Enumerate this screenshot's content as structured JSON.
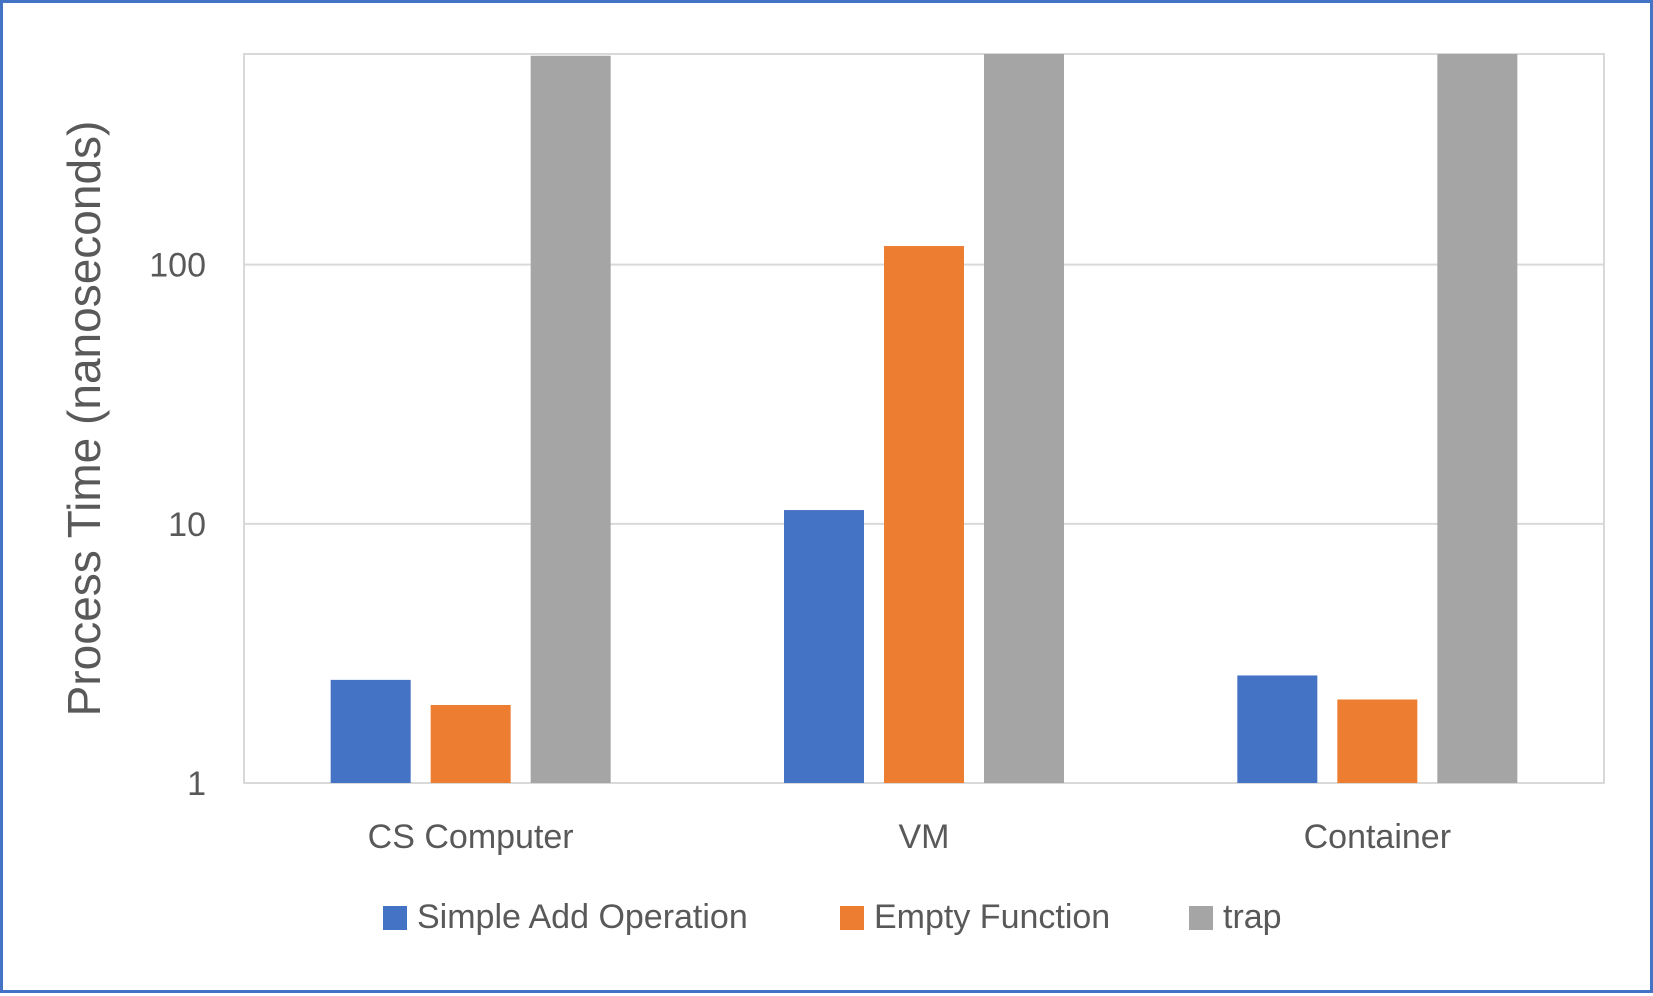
{
  "chart_data": {
    "type": "bar",
    "title": "",
    "xlabel": "",
    "ylabel": "Process Time (nanoseconds)",
    "y_scale": "log",
    "ylim": [
      1,
      650
    ],
    "yticks": [
      {
        "value": 1,
        "label": "1"
      },
      {
        "value": 10,
        "label": "10"
      },
      {
        "value": 100,
        "label": "100"
      }
    ],
    "grid": true,
    "legend_position": "bottom",
    "categories": [
      "CS Computer",
      "VM",
      "Container"
    ],
    "series": [
      {
        "name": "Simple Add Operation",
        "color": "#4472c4",
        "values": [
          2.5,
          11.3,
          2.6
        ]
      },
      {
        "name": "Empty Function",
        "color": "#ed7d31",
        "values": [
          2.0,
          118,
          2.1
        ]
      },
      {
        "name": "trap",
        "color": "#a5a5a5",
        "values": [
          640,
          650,
          650
        ]
      }
    ]
  }
}
